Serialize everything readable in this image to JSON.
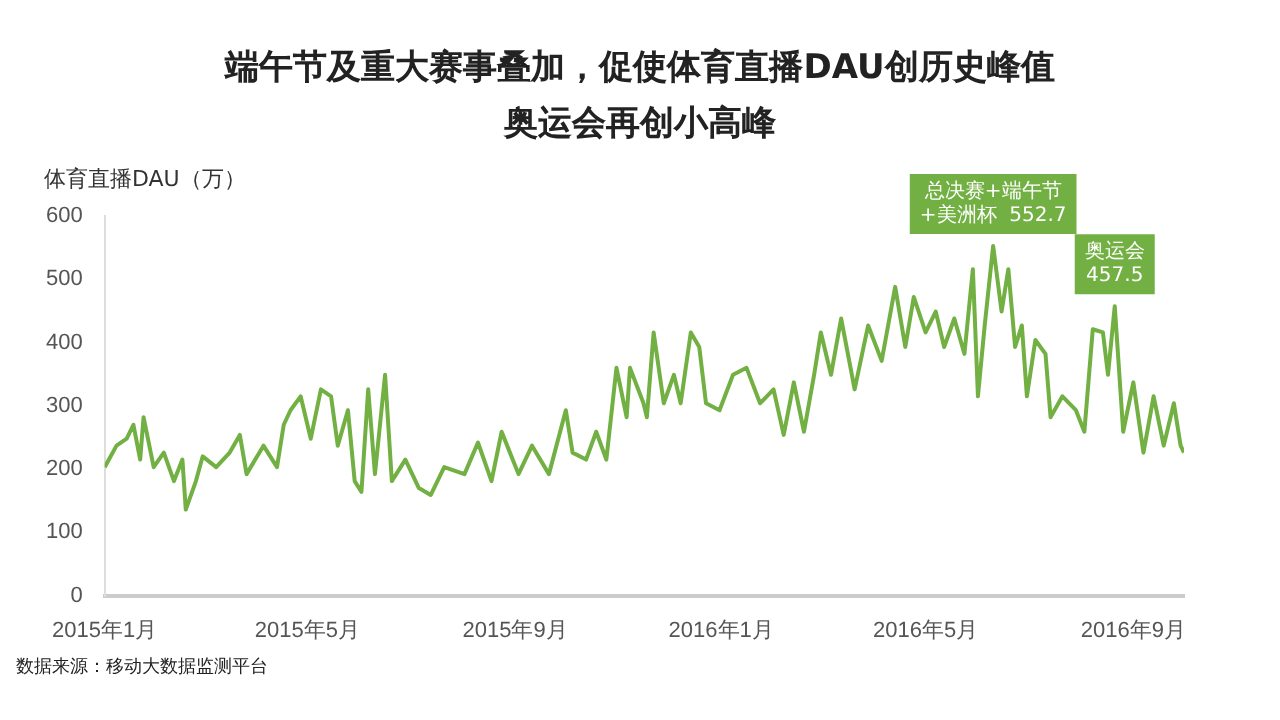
{
  "chart_data": {
    "type": "line",
    "title": "端午节及重大赛事叠加，促使体育直播DAU创历史峰值",
    "subtitle": "奥运会再创小高峰",
    "ylabel": "体育直播DAU（万）",
    "annotations": [
      {
        "text": "总决赛+端午节\n+美洲杯  552.7",
        "x": "2016-06-10",
        "y": 552.7
      },
      {
        "text": "奥运会\n457.5",
        "x": "2016-08-21",
        "y": 457.5
      },
      "数据来源：移动大数据监测平台"
    ],
    "xlim": [
      "2015-01-01",
      "2016-10-01"
    ],
    "xticks": [
      {
        "value": "2015-01-01",
        "label": "2015年1月"
      },
      {
        "value": "2015-05-01",
        "label": "2015年5月"
      },
      {
        "value": "2015-09-01",
        "label": "2015年9月"
      },
      {
        "value": "2016-01-01",
        "label": "2016年1月"
      },
      {
        "value": "2016-05-01",
        "label": "2016年5月"
      },
      {
        "value": "2016-09-01",
        "label": "2016年9月"
      }
    ],
    "ylim": [
      0,
      600
    ],
    "yticks": [
      0,
      100,
      200,
      300,
      400,
      500,
      600
    ],
    "grid": false,
    "legend": false,
    "marker": "none",
    "line_style": "solid",
    "series": [
      {
        "color": "#72b043",
        "x": [
          "2015-01-01",
          "2015-01-08",
          "2015-01-14",
          "2015-01-18",
          "2015-01-22",
          "2015-01-24",
          "2015-01-30",
          "2015-02-05",
          "2015-02-11",
          "2015-02-16",
          "2015-02-18",
          "2015-02-24",
          "2015-02-28",
          "2015-03-08",
          "2015-03-16",
          "2015-03-22",
          "2015-03-26",
          "2015-04-05",
          "2015-04-13",
          "2015-04-17",
          "2015-04-21",
          "2015-04-27",
          "2015-05-03",
          "2015-05-09",
          "2015-05-15",
          "2015-05-19",
          "2015-05-25",
          "2015-05-29",
          "2015-06-02",
          "2015-06-06",
          "2015-06-10",
          "2015-06-16",
          "2015-06-20",
          "2015-06-28",
          "2015-07-06",
          "2015-07-13",
          "2015-07-21",
          "2015-08-02",
          "2015-08-10",
          "2015-08-18",
          "2015-08-24",
          "2015-09-03",
          "2015-09-11",
          "2015-09-21",
          "2015-10-01",
          "2015-10-05",
          "2015-10-13",
          "2015-10-19",
          "2015-10-25",
          "2015-10-31",
          "2015-11-06",
          "2015-11-08",
          "2015-11-16",
          "2015-11-18",
          "2015-11-22",
          "2015-11-28",
          "2015-12-04",
          "2015-12-08",
          "2015-12-14",
          "2015-12-19",
          "2015-12-23",
          "2015-12-31",
          "2016-01-08",
          "2016-01-16",
          "2016-01-24",
          "2016-02-01",
          "2016-02-07",
          "2016-02-13",
          "2016-02-19",
          "2016-02-25",
          "2016-02-29",
          "2016-03-06",
          "2016-03-12",
          "2016-03-20",
          "2016-03-28",
          "2016-04-05",
          "2016-04-13",
          "2016-04-19",
          "2016-04-24",
          "2016-05-01",
          "2016-05-07",
          "2016-05-12",
          "2016-05-18",
          "2016-05-24",
          "2016-05-29",
          "2016-06-01",
          "2016-06-05",
          "2016-06-10",
          "2016-06-15",
          "2016-06-19",
          "2016-06-23",
          "2016-06-27",
          "2016-06-30",
          "2016-07-05",
          "2016-07-11",
          "2016-07-14",
          "2016-07-21",
          "2016-07-29",
          "2016-08-03",
          "2016-08-08",
          "2016-08-14",
          "2016-08-17",
          "2016-08-21",
          "2016-08-26",
          "2016-09-01",
          "2016-09-07",
          "2016-09-13",
          "2016-09-19",
          "2016-09-25",
          "2016-09-29",
          "2016-10-01"
        ],
        "values": [
          203,
          237,
          248,
          270,
          215,
          282,
          203,
          226,
          181,
          215,
          136,
          181,
          220,
          203,
          226,
          254,
          192,
          237,
          203,
          270,
          293,
          315,
          248,
          326,
          315,
          237,
          293,
          181,
          164,
          326,
          192,
          349,
          181,
          215,
          170,
          159,
          203,
          192,
          242,
          181,
          259,
          192,
          237,
          192,
          293,
          226,
          215,
          259,
          215,
          360,
          282,
          360,
          304,
          282,
          416,
          304,
          349,
          304,
          416,
          393,
          304,
          293,
          349,
          360,
          304,
          326,
          254,
          337,
          259,
          349,
          416,
          349,
          438,
          326,
          427,
          371,
          488,
          393,
          472,
          416,
          449,
          393,
          438,
          382,
          516,
          315,
          427,
          552.7,
          449,
          516,
          393,
          427,
          315,
          404,
          382,
          282,
          315,
          293,
          259,
          421,
          416,
          349,
          457.5,
          259,
          337,
          226,
          315,
          237,
          304,
          237,
          226
        ]
      }
    ]
  }
}
